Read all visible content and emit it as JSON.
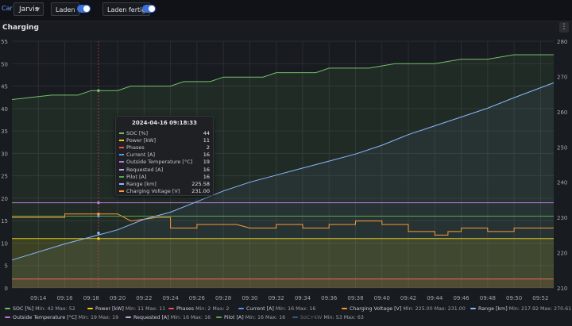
{
  "topbar": {
    "car_label": "Car",
    "car_value": "Jarvis",
    "laden_label": "Laden",
    "laden_fertig_label": "Laden fertig"
  },
  "panel": {
    "title": "Charging"
  },
  "colors": {
    "soc": "#73bf69",
    "power": "#f2cc0c",
    "phases": "#f2495c",
    "current": "#5794f2",
    "voltage": "#ff9830",
    "range": "#8ab8ff",
    "temp": "#b877d9",
    "requested": "#c4a6e6",
    "pilot": "#56a64b",
    "soc_kw": "#5794f2"
  },
  "chart_data": {
    "type": "line",
    "title": "Charging",
    "x": [
      "09:14",
      "09:16",
      "09:18",
      "09:20",
      "09:22",
      "09:24",
      "09:26",
      "09:28",
      "09:30",
      "09:32",
      "09:34",
      "09:36",
      "09:38",
      "09:40",
      "09:42",
      "09:44",
      "09:46",
      "09:48",
      "09:50",
      "09:52"
    ],
    "x_range": [
      "09:12",
      "09:53"
    ],
    "y_left": {
      "ylim": [
        0,
        55
      ],
      "ticks": [
        0,
        5,
        10,
        15,
        20,
        25,
        30,
        35,
        40,
        45,
        50,
        55
      ]
    },
    "y_right": {
      "ylim": [
        210,
        280
      ],
      "ticks": [
        210,
        220,
        230,
        240,
        250,
        260,
        270,
        280
      ]
    },
    "grid": true,
    "legend_position": "bottom",
    "cursor_time": "09:18:33",
    "series": [
      {
        "name": "SOC [%]",
        "key": "soc",
        "axis": "left",
        "min": "42",
        "max": "52",
        "points": [
          [
            "09:12",
            42
          ],
          [
            "09:15",
            43
          ],
          [
            "09:17",
            43
          ],
          [
            "09:18",
            44
          ],
          [
            "09:20",
            44
          ],
          [
            "09:21",
            45
          ],
          [
            "09:24",
            45
          ],
          [
            "09:25",
            46
          ],
          [
            "09:27",
            46
          ],
          [
            "09:28",
            47
          ],
          [
            "09:31",
            47
          ],
          [
            "09:32",
            48
          ],
          [
            "09:35",
            48
          ],
          [
            "09:36",
            49
          ],
          [
            "09:39",
            49
          ],
          [
            "09:41",
            50
          ],
          [
            "09:44",
            50
          ],
          [
            "09:46",
            51
          ],
          [
            "09:48",
            51
          ],
          [
            "09:50",
            52
          ],
          [
            "09:53",
            52
          ]
        ]
      },
      {
        "name": "Power [kW]",
        "key": "power",
        "axis": "left",
        "min": "11",
        "max": "11",
        "points": [
          [
            "09:12",
            11
          ],
          [
            "09:53",
            11
          ]
        ]
      },
      {
        "name": "Phases",
        "key": "phases",
        "axis": "left",
        "min": "2",
        "max": "2",
        "points": [
          [
            "09:12",
            2
          ],
          [
            "09:53",
            2
          ]
        ]
      },
      {
        "name": "Current [A]",
        "key": "current",
        "axis": "left",
        "min": "16",
        "max": "16",
        "points": [
          [
            "09:12",
            16
          ],
          [
            "09:53",
            16
          ]
        ]
      },
      {
        "name": "Charging Voltage [V]",
        "key": "voltage",
        "axis": "right",
        "min": "225.00",
        "max": "231.00",
        "points": [
          [
            "09:12",
            230
          ],
          [
            "09:16",
            230
          ],
          [
            "09:16",
            231
          ],
          [
            "09:20",
            231
          ],
          [
            "09:21",
            229
          ],
          [
            "09:23",
            230
          ],
          [
            "09:24",
            230
          ],
          [
            "09:24",
            227
          ],
          [
            "09:26",
            227
          ],
          [
            "09:26",
            228
          ],
          [
            "09:29",
            228
          ],
          [
            "09:30",
            227
          ],
          [
            "09:32",
            227
          ],
          [
            "09:32",
            228
          ],
          [
            "09:34",
            228
          ],
          [
            "09:34",
            227
          ],
          [
            "09:36",
            227
          ],
          [
            "09:36",
            228
          ],
          [
            "09:38",
            228
          ],
          [
            "09:38",
            229
          ],
          [
            "09:40",
            229
          ],
          [
            "09:40",
            228
          ],
          [
            "09:42",
            228
          ],
          [
            "09:42",
            226
          ],
          [
            "09:44",
            226
          ],
          [
            "09:44",
            225
          ],
          [
            "09:45",
            225
          ],
          [
            "09:45",
            226
          ],
          [
            "09:46",
            226
          ],
          [
            "09:46",
            227
          ],
          [
            "09:48",
            227
          ],
          [
            "09:48",
            226
          ],
          [
            "09:50",
            226
          ],
          [
            "09:50",
            227
          ],
          [
            "09:53",
            227
          ]
        ]
      },
      {
        "name": "Range [km]",
        "key": "range",
        "axis": "right",
        "min": "217.92",
        "max": "270.61",
        "points": [
          [
            "09:12",
            217.92
          ],
          [
            "09:16",
            222.5
          ],
          [
            "09:18",
            224.5
          ],
          [
            "09:20",
            226.5
          ],
          [
            "09:22",
            229.5
          ],
          [
            "09:24",
            231.5
          ],
          [
            "09:26",
            234.5
          ],
          [
            "09:28",
            237.5
          ],
          [
            "09:30",
            240
          ],
          [
            "09:32",
            242
          ],
          [
            "09:34",
            244
          ],
          [
            "09:36",
            246
          ],
          [
            "09:38",
            248
          ],
          [
            "09:40",
            250.5
          ],
          [
            "09:42",
            253.5
          ],
          [
            "09:44",
            256
          ],
          [
            "09:46",
            258.5
          ],
          [
            "09:48",
            261
          ],
          [
            "09:50",
            264
          ],
          [
            "09:53",
            268.2
          ]
        ]
      },
      {
        "name": "Outside Temperature [°C]",
        "key": "temp",
        "axis": "left",
        "min": "19",
        "max": "19",
        "points": [
          [
            "09:12",
            19
          ],
          [
            "09:53",
            19
          ]
        ]
      },
      {
        "name": "Requested [A]",
        "key": "requested",
        "axis": "left",
        "min": "16",
        "max": "16",
        "points": [
          [
            "09:12",
            16
          ],
          [
            "09:53",
            16
          ]
        ]
      },
      {
        "name": "Pilot [A]",
        "key": "pilot",
        "axis": "left",
        "min": "16",
        "max": "16",
        "points": [
          [
            "09:12",
            16
          ],
          [
            "09:53",
            16
          ]
        ]
      },
      {
        "name": "SoC+kW",
        "key": "soc_kw",
        "axis": "left",
        "min": "53",
        "max": "63",
        "hidden": true,
        "points": []
      }
    ]
  },
  "tooltip": {
    "time": "2024-04-16 09:18:33",
    "rows": [
      {
        "label": "SOC [%]",
        "value": "44",
        "key": "soc"
      },
      {
        "label": "Power [kW]",
        "value": "11",
        "key": "power"
      },
      {
        "label": "Phases",
        "value": "2",
        "key": "phases"
      },
      {
        "label": "Current [A]",
        "value": "16",
        "key": "current"
      },
      {
        "label": "Outside Temperature [°C]",
        "value": "19",
        "key": "temp"
      },
      {
        "label": "Requested [A]",
        "value": "16",
        "key": "requested"
      },
      {
        "label": "Pilot [A]",
        "value": "16",
        "key": "pilot"
      },
      {
        "label": "Range [km]",
        "value": "225.58",
        "key": "range"
      },
      {
        "label": "Charging Voltage [V]",
        "value": "231.00",
        "key": "voltage"
      }
    ]
  },
  "legend": {
    "min_label": "Min:",
    "max_label": "Max:"
  }
}
